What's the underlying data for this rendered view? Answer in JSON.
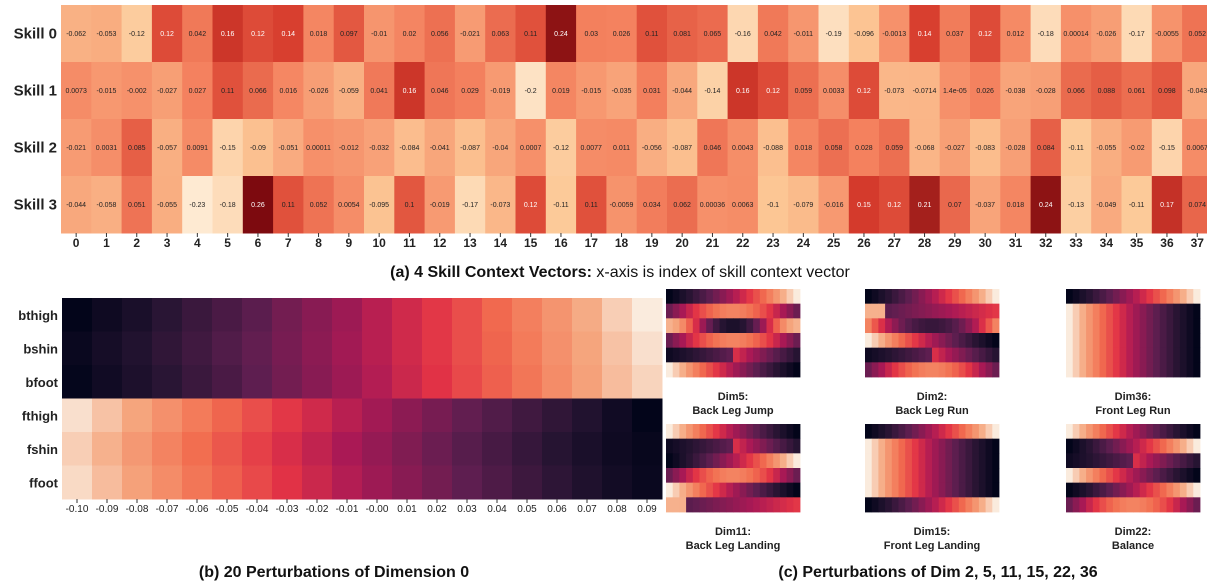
{
  "captions": {
    "a_bold": "(a) 4 Skill Context Vectors:",
    "a_rest": " x-axis is index of skill context vector",
    "b": "(b) 20 Perturbations of Dimension 0",
    "c": "(c) Perturbations of Dim 2, 5, 11, 15, 22, 36"
  },
  "chart_data": [
    {
      "type": "heatmap",
      "id": "a",
      "title": "4 Skill Context Vectors",
      "rows": [
        "Skill 0",
        "Skill 1",
        "Skill 2",
        "Skill 3"
      ],
      "columns": [
        "0",
        "1",
        "2",
        "3",
        "4",
        "5",
        "6",
        "7",
        "8",
        "9",
        "10",
        "11",
        "12",
        "13",
        "14",
        "15",
        "16",
        "17",
        "18",
        "19",
        "20",
        "21",
        "22",
        "23",
        "24",
        "25",
        "26",
        "27",
        "28",
        "29",
        "30",
        "31",
        "32",
        "33",
        "34",
        "35",
        "36",
        "37",
        "38",
        "39"
      ],
      "values": [
        [
          -0.062,
          -0.053,
          -0.12,
          0.12,
          0.042,
          0.16,
          0.12,
          0.14,
          0.018,
          0.097,
          -0.01,
          0.02,
          0.056,
          -0.021,
          0.063,
          0.11,
          0.24,
          0.03,
          0.026,
          0.11,
          0.081,
          0.065,
          -0.16,
          0.042,
          -0.011,
          -0.19,
          -0.096,
          -0.0013,
          0.14,
          0.037,
          0.12,
          0.012,
          -0.18,
          0.00014,
          -0.026,
          -0.17,
          -0.0055,
          0.052,
          0.11,
          0.0071
        ],
        [
          0.0073,
          -0.015,
          -0.002,
          -0.027,
          0.027,
          0.11,
          0.066,
          0.016,
          -0.026,
          -0.059,
          0.041,
          0.16,
          0.046,
          0.029,
          -0.019,
          -0.2,
          0.019,
          -0.015,
          -0.035,
          0.031,
          -0.044,
          -0.14,
          0.16,
          0.12,
          0.059,
          0.0033,
          0.12,
          -0.073,
          -0.0714,
          1.4e-05,
          0.026,
          -0.038,
          -0.028,
          0.066,
          0.088,
          0.061,
          0.098,
          -0.043,
          -0.065,
          -0.046
        ],
        [
          -0.021,
          0.0031,
          0.085,
          -0.057,
          0.0091,
          -0.15,
          -0.09,
          -0.051,
          0.00011,
          -0.012,
          -0.032,
          -0.084,
          -0.041,
          -0.087,
          -0.04,
          0.0007,
          -0.12,
          0.0077,
          0.011,
          -0.056,
          -0.087,
          0.046,
          0.0043,
          -0.088,
          0.018,
          0.058,
          0.028,
          0.059,
          -0.068,
          -0.027,
          -0.083,
          -0.028,
          0.084,
          -0.11,
          -0.055,
          -0.02,
          -0.15,
          0.0067,
          -0.07,
          0.0047
        ],
        [
          -0.044,
          -0.058,
          0.051,
          -0.055,
          -0.23,
          -0.18,
          0.26,
          0.11,
          0.052,
          0.0054,
          -0.095,
          0.1,
          -0.019,
          -0.17,
          -0.073,
          0.12,
          -0.11,
          0.11,
          -0.0059,
          0.034,
          0.062,
          0.00036,
          0.0063,
          -0.1,
          -0.079,
          -0.016,
          0.15,
          0.12,
          0.21,
          0.07,
          -0.037,
          0.018,
          0.24,
          -0.13,
          -0.049,
          -0.11,
          0.17,
          0.074,
          0.012,
          -0.069
        ]
      ],
      "cell_labels": [
        [
          "-0.062",
          "-0.053",
          "-0.12",
          "0.12",
          "0.042",
          "0.16",
          "0.12",
          "0.14",
          "0.018",
          "0.097",
          "-0.01",
          "0.02",
          "0.056",
          "-0.021",
          "0.063",
          "0.11",
          "0.24",
          "0.03",
          "0.026",
          "0.11",
          "0.081",
          "0.065",
          "-0.16",
          "0.042",
          "-0.011",
          "-0.19",
          "-0.096",
          "-0.0013",
          "0.14",
          "0.037",
          "0.12",
          "0.012",
          "-0.18",
          "0.00014",
          "-0.026",
          "-0.17",
          "-0.0055",
          "0.052",
          "0.11",
          "0.0071"
        ],
        [
          "0.0073",
          "-0.015",
          "-0.002",
          "-0.027",
          "0.027",
          "0.11",
          "0.066",
          "0.016",
          "-0.026",
          "-0.059",
          "0.041",
          "0.16",
          "0.046",
          "0.029",
          "-0.019",
          "-0.2",
          "0.019",
          "-0.015",
          "-0.035",
          "0.031",
          "-0.044",
          "-0.14",
          "0.16",
          "0.12",
          "0.059",
          "0.0033",
          "0.12",
          "-0.073",
          "-0.0714",
          "1.4e-05",
          "0.026",
          "-0.038",
          "-0.028",
          "0.066",
          "0.088",
          "0.061",
          "0.098",
          "-0.043",
          "-0.065",
          "-0.046"
        ],
        [
          "-0.021",
          "0.0031",
          "0.085",
          "-0.057",
          "0.0091",
          "-0.15",
          "-0.09",
          "-0.051",
          "0.00011",
          "-0.012",
          "-0.032",
          "-0.084",
          "-0.041",
          "-0.087",
          "-0.04",
          "0.0007",
          "-0.12",
          "0.0077",
          "0.011",
          "-0.056",
          "-0.087",
          "0.046",
          "0.0043",
          "-0.088",
          "0.018",
          "0.058",
          "0.028",
          "0.059",
          "-0.068",
          "-0.027",
          "-0.083",
          "-0.028",
          "0.084",
          "-0.11",
          "-0.055",
          "-0.02",
          "-0.15",
          "0.0067",
          "-0.07",
          "0.0047"
        ],
        [
          "-0.044",
          "-0.058",
          "0.051",
          "-0.055",
          "-0.23",
          "-0.18",
          "0.26",
          "0.11",
          "0.052",
          "0.0054",
          "-0.095",
          "0.1",
          "-0.019",
          "-0.17",
          "-0.073",
          "0.12",
          "-0.11",
          "0.11",
          "-0.0059",
          "0.034",
          "0.062",
          "0.00036",
          "0.0063",
          "-0.1",
          "-0.079",
          "-0.016",
          "0.15",
          "0.12",
          "0.21",
          "0.07",
          "-0.037",
          "0.018",
          "0.24",
          "-0.13",
          "-0.049",
          "-0.11",
          "0.17",
          "0.074",
          "0.012",
          "-0.069"
        ]
      ],
      "value_range": [
        -0.26,
        0.26
      ],
      "colormap": "light-to-dark red"
    },
    {
      "type": "heatmap",
      "id": "b",
      "title": "20 Perturbations of Dimension 0",
      "rows": [
        "bthigh",
        "bshin",
        "bfoot",
        "fthigh",
        "fshin",
        "ffoot"
      ],
      "columns": [
        "-0.10",
        "-0.09",
        "-0.08",
        "-0.07",
        "-0.06",
        "-0.05",
        "-0.04",
        "-0.03",
        "-0.02",
        "-0.01",
        "-0.00",
        "0.01",
        "0.02",
        "0.03",
        "0.04",
        "0.05",
        "0.06",
        "0.07",
        "0.08",
        "0.09"
      ],
      "values": [
        [
          0.0,
          0.05,
          0.1,
          0.16,
          0.21,
          0.26,
          0.31,
          0.37,
          0.42,
          0.47,
          0.53,
          0.58,
          0.63,
          0.68,
          0.74,
          0.79,
          0.84,
          0.89,
          0.95,
          1.0
        ],
        [
          0.03,
          0.08,
          0.13,
          0.18,
          0.23,
          0.28,
          0.33,
          0.38,
          0.43,
          0.48,
          0.53,
          0.58,
          0.63,
          0.68,
          0.73,
          0.78,
          0.83,
          0.88,
          0.93,
          0.98
        ],
        [
          0.01,
          0.06,
          0.11,
          0.16,
          0.21,
          0.26,
          0.32,
          0.37,
          0.42,
          0.47,
          0.52,
          0.57,
          0.62,
          0.67,
          0.72,
          0.77,
          0.82,
          0.87,
          0.92,
          0.96
        ],
        [
          0.98,
          0.93,
          0.88,
          0.83,
          0.78,
          0.73,
          0.68,
          0.63,
          0.58,
          0.53,
          0.48,
          0.43,
          0.38,
          0.33,
          0.28,
          0.23,
          0.18,
          0.13,
          0.06,
          0.0
        ],
        [
          0.95,
          0.9,
          0.85,
          0.8,
          0.75,
          0.7,
          0.65,
          0.6,
          0.55,
          0.5,
          0.45,
          0.4,
          0.35,
          0.3,
          0.25,
          0.2,
          0.15,
          0.1,
          0.05,
          0.02
        ],
        [
          0.97,
          0.92,
          0.87,
          0.82,
          0.77,
          0.72,
          0.67,
          0.62,
          0.57,
          0.52,
          0.47,
          0.42,
          0.37,
          0.32,
          0.27,
          0.22,
          0.17,
          0.12,
          0.07,
          0.03
        ]
      ],
      "value_range": [
        0,
        1
      ],
      "colormap": "dark purple to pale peach"
    },
    {
      "type": "heatmap",
      "id": "c",
      "title": "Perturbations of Dim 2, 5, 11, 15, 22, 36",
      "panels": [
        {
          "label": [
            "Dim5:",
            "Back Leg Jump"
          ],
          "profiles": [
            "up",
            "mid",
            "peak",
            "mid",
            "flip",
            "dn"
          ]
        },
        {
          "label": [
            "Dim2:",
            "Back Leg Run"
          ],
          "profiles": [
            "up",
            "edge",
            "hump",
            "dn",
            "flip",
            "mid"
          ]
        },
        {
          "label": [
            "Dim36:",
            "Front Leg Run"
          ],
          "profiles": [
            "up",
            "dn",
            "dn",
            "dn",
            "dn",
            "dn"
          ]
        },
        {
          "label": [
            "Dim11:",
            "Back Leg Landing"
          ],
          "profiles": [
            "dn",
            "flip",
            "up",
            "mid",
            "dn",
            "edge"
          ]
        },
        {
          "label": [
            "Dim15:",
            "Front Leg Landing"
          ],
          "profiles": [
            "up",
            "dn",
            "dn",
            "dn",
            "dn",
            "up"
          ]
        },
        {
          "label": [
            "Dim22:",
            "Balance"
          ],
          "profiles": [
            "dn",
            "up",
            "flip",
            "dn",
            "up",
            "mid"
          ]
        }
      ]
    }
  ]
}
